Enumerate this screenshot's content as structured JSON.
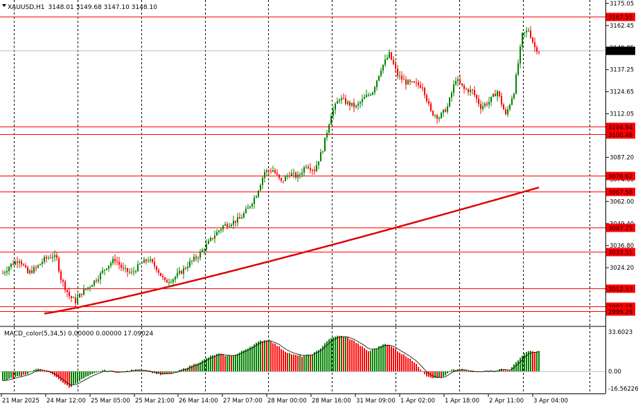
{
  "header": {
    "symbol": "XAUUSD,H1",
    "ohlc": "3148.01 3149.68 3147.10 3148.10"
  },
  "indicator": {
    "title": "MACD_color(5,34,5) 0.00000 0.00000 17.09024",
    "scale_labels": [
      "33.6023",
      "0.00",
      "-16.56226"
    ]
  },
  "price_axis": {
    "labels": [
      "3175.05",
      "3162.45",
      "3149.85",
      "3137.25",
      "3124.65",
      "3112.05",
      "3099.45",
      "3087.20",
      "3074.60",
      "3062.00",
      "3049.40",
      "3036.80",
      "3024.20",
      "3011.60"
    ]
  },
  "levels": [
    {
      "price": 3167.55,
      "label": "3167.55"
    },
    {
      "price": 3104.94,
      "label": "3104.94"
    },
    {
      "price": 3100.46,
      "label": "3100.46"
    },
    {
      "price": 3076.62,
      "label": "3076.62"
    },
    {
      "price": 3067.58,
      "label": "3067.58"
    },
    {
      "price": 3047.25,
      "label": "3047.25"
    },
    {
      "price": 3033.51,
      "label": "3033.51"
    },
    {
      "price": 3012.33,
      "label": "3012.33"
    },
    {
      "price": 3002.15,
      "label": "3002.15"
    },
    {
      "price": 2999.29,
      "label": "2999.29"
    }
  ],
  "current_price": {
    "price": 3148.1,
    "label": "3148.10"
  },
  "time_axis": {
    "labels": [
      "21 Mar 2025",
      "24 Mar 12:00",
      "25 Mar 05:00",
      "25 Mar 21:00",
      "26 Mar 14:00",
      "27 Mar 07:00",
      "28 Mar 00:00",
      "28 Mar 16:00",
      "31 Mar 09:00",
      "1 Apr 02:00",
      "1 Apr 18:00",
      "2 Apr 11:00",
      "3 Apr 04:00"
    ]
  },
  "colors": {
    "bull": "#008000",
    "bear": "#ff0000",
    "ma": "#dd0000",
    "level_line": "#ff0000",
    "level_tag": "#ff0000",
    "grid": "#000000"
  },
  "chart_data": {
    "type": "candlestick",
    "timeframe": "H1",
    "y_range": [
      2997.0,
      3180.0
    ],
    "ma_range": [
      2998.0,
      3070.0
    ],
    "anchors": [
      [
        0,
        3021
      ],
      [
        4,
        3026
      ],
      [
        8,
        3029
      ],
      [
        12,
        3021
      ],
      [
        16,
        3024
      ],
      [
        20,
        3029
      ],
      [
        24,
        3031
      ],
      [
        26,
        3029
      ],
      [
        28,
        3018
      ],
      [
        32,
        3008
      ],
      [
        35,
        3005
      ],
      [
        38,
        3010
      ],
      [
        42,
        3014
      ],
      [
        46,
        3019
      ],
      [
        50,
        3025
      ],
      [
        54,
        3029
      ],
      [
        58,
        3023
      ],
      [
        62,
        3021
      ],
      [
        66,
        3026
      ],
      [
        70,
        3029
      ],
      [
        74,
        3024
      ],
      [
        78,
        3016
      ],
      [
        82,
        3018
      ],
      [
        86,
        3022
      ],
      [
        90,
        3027
      ],
      [
        94,
        3031
      ],
      [
        98,
        3037
      ],
      [
        102,
        3043
      ],
      [
        106,
        3048
      ],
      [
        110,
        3050
      ],
      [
        114,
        3052
      ],
      [
        118,
        3058
      ],
      [
        122,
        3066
      ],
      [
        126,
        3079
      ],
      [
        130,
        3080
      ],
      [
        134,
        3073
      ],
      [
        138,
        3078
      ],
      [
        142,
        3076
      ],
      [
        146,
        3083
      ],
      [
        150,
        3080
      ],
      [
        154,
        3092
      ],
      [
        158,
        3112
      ],
      [
        162,
        3121
      ],
      [
        166,
        3118
      ],
      [
        170,
        3116
      ],
      [
        174,
        3121
      ],
      [
        178,
        3125
      ],
      [
        182,
        3138
      ],
      [
        186,
        3146
      ],
      [
        190,
        3134
      ],
      [
        194,
        3130
      ],
      [
        198,
        3129
      ],
      [
        202,
        3128
      ],
      [
        206,
        3113
      ],
      [
        210,
        3110
      ],
      [
        214,
        3116
      ],
      [
        218,
        3132
      ],
      [
        222,
        3126
      ],
      [
        226,
        3125
      ],
      [
        230,
        3116
      ],
      [
        234,
        3119
      ],
      [
        238,
        3125
      ],
      [
        242,
        3111
      ],
      [
        246,
        3125
      ],
      [
        250,
        3157
      ],
      [
        253,
        3160
      ],
      [
        256,
        3150
      ],
      [
        258,
        3148
      ]
    ],
    "macd_anchors": [
      [
        0,
        -8
      ],
      [
        6,
        -5
      ],
      [
        12,
        -2
      ],
      [
        16,
        2
      ],
      [
        20,
        1
      ],
      [
        24,
        -3
      ],
      [
        28,
        -8
      ],
      [
        32,
        -14
      ],
      [
        36,
        -9
      ],
      [
        40,
        -5
      ],
      [
        44,
        -2
      ],
      [
        48,
        1
      ],
      [
        52,
        0
      ],
      [
        56,
        -1
      ],
      [
        60,
        0
      ],
      [
        64,
        2
      ],
      [
        68,
        1
      ],
      [
        72,
        -1
      ],
      [
        76,
        -3
      ],
      [
        80,
        -2
      ],
      [
        84,
        0
      ],
      [
        88,
        3
      ],
      [
        92,
        6
      ],
      [
        96,
        9
      ],
      [
        100,
        13
      ],
      [
        104,
        15
      ],
      [
        108,
        13
      ],
      [
        112,
        14
      ],
      [
        116,
        18
      ],
      [
        120,
        22
      ],
      [
        124,
        26
      ],
      [
        128,
        27
      ],
      [
        132,
        22
      ],
      [
        136,
        17
      ],
      [
        140,
        14
      ],
      [
        144,
        13
      ],
      [
        148,
        14
      ],
      [
        152,
        18
      ],
      [
        156,
        26
      ],
      [
        160,
        30
      ],
      [
        164,
        30
      ],
      [
        168,
        27
      ],
      [
        172,
        22
      ],
      [
        176,
        17
      ],
      [
        180,
        20
      ],
      [
        184,
        24
      ],
      [
        188,
        20
      ],
      [
        192,
        15
      ],
      [
        196,
        11
      ],
      [
        200,
        4
      ],
      [
        204,
        -4
      ],
      [
        208,
        -6
      ],
      [
        212,
        -5
      ],
      [
        216,
        1
      ],
      [
        220,
        2
      ],
      [
        224,
        0
      ],
      [
        228,
        -1
      ],
      [
        232,
        1
      ],
      [
        236,
        0
      ],
      [
        240,
        2
      ],
      [
        244,
        1
      ],
      [
        248,
        10
      ],
      [
        252,
        17
      ],
      [
        256,
        17
      ],
      [
        258,
        17
      ]
    ]
  }
}
